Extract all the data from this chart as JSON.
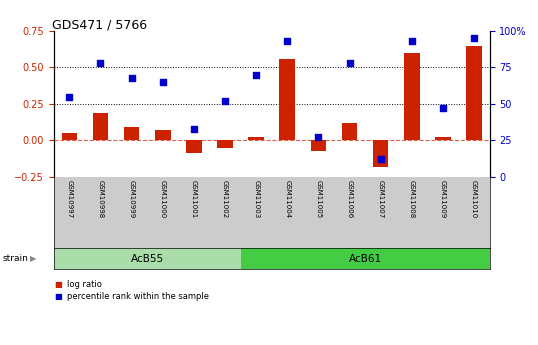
{
  "title": "GDS471 / 5766",
  "samples": [
    "GSM10997",
    "GSM10998",
    "GSM10999",
    "GSM11000",
    "GSM11001",
    "GSM11002",
    "GSM11003",
    "GSM11004",
    "GSM11005",
    "GSM11006",
    "GSM11007",
    "GSM11008",
    "GSM11009",
    "GSM11010"
  ],
  "log_ratio": [
    0.05,
    0.19,
    0.09,
    0.07,
    -0.09,
    -0.05,
    0.02,
    0.56,
    -0.07,
    0.12,
    -0.18,
    0.6,
    0.02,
    0.65
  ],
  "percentile_rank": [
    55,
    78,
    68,
    65,
    33,
    52,
    70,
    93,
    27,
    78,
    12,
    93,
    47,
    95
  ],
  "groups": [
    {
      "label": "AcB55",
      "start": 0,
      "end": 5,
      "color": "#aaddaa"
    },
    {
      "label": "AcB61",
      "start": 6,
      "end": 13,
      "color": "#44cc44"
    }
  ],
  "group_label": "strain",
  "ylim_left": [
    -0.25,
    0.75
  ],
  "ylim_right": [
    0,
    100
  ],
  "yticks_left": [
    -0.25,
    0,
    0.25,
    0.5,
    0.75
  ],
  "yticks_right": [
    0,
    25,
    50,
    75,
    100
  ],
  "hlines": [
    0.25,
    0.5
  ],
  "bar_color": "#cc2200",
  "dot_color": "#0000cc",
  "zero_line_color": "#cc2200",
  "dotted_line_color": "#000000",
  "background_color": "#ffffff",
  "bar_width": 0.5,
  "dot_size": 18,
  "tick_bg": "#cccccc",
  "group_bg_light": "#aaddaa",
  "group_bg_dark": "#44cc44"
}
